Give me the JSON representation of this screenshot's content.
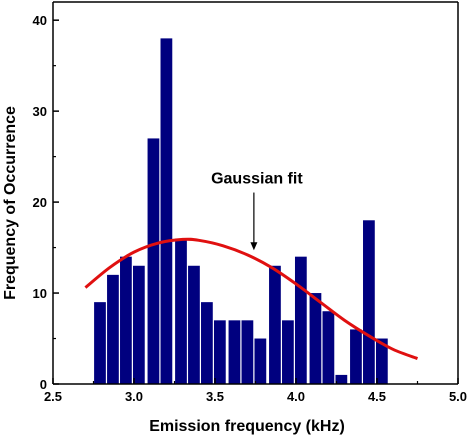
{
  "chart_data": {
    "type": "bar",
    "title": "",
    "xlabel": "Emission frequency (kHz)",
    "ylabel": "Frequency of Occurrence",
    "xlim": [
      2.5,
      5.0
    ],
    "ylim": [
      0,
      42
    ],
    "x_ticks": [
      2.5,
      3.0,
      3.5,
      4.0,
      4.5,
      5.0
    ],
    "x_tick_labels": [
      "2.5",
      "3.0",
      "3.5",
      "4.0",
      "4.5",
      "5.0"
    ],
    "y_ticks": [
      0,
      10,
      20,
      30,
      40
    ],
    "y_tick_labels": [
      "0",
      "10",
      "20",
      "30",
      "40"
    ],
    "grid": false,
    "bar_width": 0.08,
    "bars": [
      {
        "x": 2.79,
        "y": 9
      },
      {
        "x": 2.87,
        "y": 12
      },
      {
        "x": 2.95,
        "y": 14
      },
      {
        "x": 3.03,
        "y": 13
      },
      {
        "x": 3.12,
        "y": 27
      },
      {
        "x": 3.2,
        "y": 38
      },
      {
        "x": 3.29,
        "y": 16
      },
      {
        "x": 3.37,
        "y": 13
      },
      {
        "x": 3.45,
        "y": 9
      },
      {
        "x": 3.53,
        "y": 7
      },
      {
        "x": 3.62,
        "y": 7
      },
      {
        "x": 3.7,
        "y": 7
      },
      {
        "x": 3.78,
        "y": 5
      },
      {
        "x": 3.87,
        "y": 13
      },
      {
        "x": 3.95,
        "y": 7
      },
      {
        "x": 4.03,
        "y": 14
      },
      {
        "x": 4.12,
        "y": 10
      },
      {
        "x": 4.2,
        "y": 8
      },
      {
        "x": 4.28,
        "y": 1
      },
      {
        "x": 4.37,
        "y": 6
      },
      {
        "x": 4.45,
        "y": 18
      },
      {
        "x": 4.53,
        "y": 5
      }
    ],
    "fit_curve": {
      "x": [
        2.7,
        2.85,
        3.0,
        3.15,
        3.3,
        3.4,
        3.55,
        3.7,
        3.85,
        4.0,
        4.15,
        4.3,
        4.45,
        4.6,
        4.75
      ],
      "y": [
        10.6,
        12.8,
        14.5,
        15.5,
        15.9,
        15.8,
        15.2,
        14.2,
        12.8,
        11.0,
        9.0,
        7.0,
        5.3,
        3.8,
        2.8
      ]
    },
    "annotations": [
      {
        "text": "Gaussian fit",
        "x": 3.74,
        "y": 20.5,
        "arrow_to": [
          3.74,
          14.7
        ]
      }
    ],
    "colors": {
      "bars": "#00007f",
      "fit_curve": "#e01010",
      "axes": "#000000"
    }
  }
}
